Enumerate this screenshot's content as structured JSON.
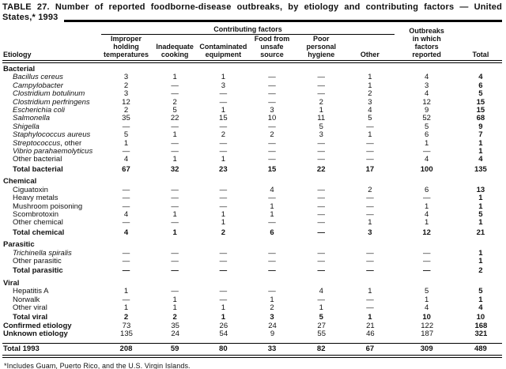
{
  "title": {
    "line1": "TABLE 27. Number of reported foodborne-disease outbreaks, by etiology and contributing factors — United",
    "line2": "States,* 1993"
  },
  "table": {
    "etiology_header": "Etiology",
    "group_header": "Contributing factors",
    "factor_columns": [
      "Improper\nholding\ntemperatures",
      "Inadequate\ncooking",
      "Contaminated\nequipment",
      "Food from\nunsafe\nsource",
      "Poor\npersonal\nhygiene",
      "Other"
    ],
    "outbreaks_header": "Outbreaks\nin which\nfactors\nreported",
    "total_header": "Total",
    "sections": [
      {
        "name": "Bacterial",
        "rows": [
          {
            "label": "Bacillus cereus",
            "italic": true,
            "values": [
              "3",
              "1",
              "1",
              "—",
              "—",
              "1",
              "4",
              "4"
            ]
          },
          {
            "label": "Campylobacter",
            "italic": true,
            "values": [
              "2",
              "—",
              "3",
              "—",
              "—",
              "1",
              "3",
              "6"
            ]
          },
          {
            "label": "Clostridium botulinum",
            "italic": true,
            "values": [
              "3",
              "—",
              "—",
              "—",
              "—",
              "2",
              "4",
              "5"
            ]
          },
          {
            "label": "Clostridium perfringens",
            "italic": true,
            "values": [
              "12",
              "2",
              "—",
              "—",
              "2",
              "3",
              "12",
              "15"
            ]
          },
          {
            "label": "Escherichia coli",
            "italic": true,
            "values": [
              "2",
              "5",
              "1",
              "3",
              "1",
              "4",
              "9",
              "15"
            ]
          },
          {
            "label": "Salmonella",
            "italic": true,
            "values": [
              "35",
              "22",
              "15",
              "10",
              "11",
              "5",
              "52",
              "68"
            ]
          },
          {
            "label": "Shigella",
            "italic": true,
            "values": [
              "—",
              "—",
              "—",
              "—",
              "5",
              "—",
              "5",
              "9"
            ]
          },
          {
            "label": "Staphylococcus aureus",
            "italic": true,
            "values": [
              "5",
              "1",
              "2",
              "2",
              "3",
              "1",
              "6",
              "7"
            ]
          },
          {
            "label": "Streptococcus",
            "suffix": ", other",
            "italic": true,
            "values": [
              "1",
              "—",
              "—",
              "—",
              "—",
              "—",
              "1",
              "1"
            ]
          },
          {
            "label": "Vibrio parahaemolyticus",
            "italic": true,
            "values": [
              "—",
              "—",
              "—",
              "—",
              "—",
              "—",
              "—",
              "1"
            ]
          },
          {
            "label": "Other bacterial",
            "values": [
              "4",
              "1",
              "1",
              "—",
              "—",
              "—",
              "4",
              "4"
            ]
          },
          {
            "label": "Total bacterial",
            "total": true,
            "values": [
              "67",
              "32",
              "23",
              "15",
              "22",
              "17",
              "100",
              "135"
            ]
          }
        ]
      },
      {
        "name": "Chemical",
        "rows": [
          {
            "label": "Ciguatoxin",
            "values": [
              "—",
              "—",
              "—",
              "4",
              "—",
              "2",
              "6",
              "13"
            ]
          },
          {
            "label": "Heavy metals",
            "values": [
              "—",
              "—",
              "—",
              "—",
              "—",
              "—",
              "—",
              "1"
            ]
          },
          {
            "label": "Mushroom poisoning",
            "values": [
              "—",
              "—",
              "—",
              "1",
              "—",
              "—",
              "1",
              "1"
            ]
          },
          {
            "label": "Scombrotoxin",
            "values": [
              "4",
              "1",
              "1",
              "1",
              "—",
              "—",
              "4",
              "5"
            ]
          },
          {
            "label": "Other chemical",
            "values": [
              "—",
              "—",
              "1",
              "—",
              "—",
              "1",
              "1",
              "1"
            ]
          },
          {
            "label": "Total chemical",
            "total": true,
            "values": [
              "4",
              "1",
              "2",
              "6",
              "—",
              "3",
              "12",
              "21"
            ]
          }
        ]
      },
      {
        "name": "Parasitic",
        "rows": [
          {
            "label": "Trichinella spiralis",
            "italic": true,
            "values": [
              "—",
              "—",
              "—",
              "—",
              "—",
              "—",
              "—",
              "1"
            ]
          },
          {
            "label": "Other parasitic",
            "values": [
              "—",
              "—",
              "—",
              "—",
              "—",
              "—",
              "—",
              "1"
            ]
          },
          {
            "label": "Total parasitic",
            "total": true,
            "values": [
              "—",
              "—",
              "—",
              "—",
              "—",
              "—",
              "—",
              "2"
            ]
          }
        ]
      },
      {
        "name": "Viral",
        "rows": [
          {
            "label": "Hepatitis A",
            "values": [
              "1",
              "—",
              "—",
              "—",
              "4",
              "1",
              "5",
              "5"
            ]
          },
          {
            "label": "Norwalk",
            "values": [
              "—",
              "1",
              "—",
              "1",
              "—",
              "—",
              "1",
              "1"
            ]
          },
          {
            "label": "Other viral",
            "values": [
              "1",
              "1",
              "1",
              "2",
              "1",
              "—",
              "4",
              "4"
            ]
          },
          {
            "label": "Total viral",
            "total": true,
            "values": [
              "2",
              "2",
              "1",
              "3",
              "5",
              "1",
              "10",
              "10"
            ]
          }
        ]
      }
    ],
    "summary_rows": [
      {
        "label": "Confirmed etiology",
        "values": [
          "73",
          "35",
          "26",
          "24",
          "27",
          "21",
          "122",
          "168"
        ]
      },
      {
        "label": "Unknown etiology",
        "values": [
          "135",
          "24",
          "54",
          "9",
          "55",
          "46",
          "187",
          "321"
        ]
      }
    ],
    "grand_total": {
      "label": "Total 1993",
      "values": [
        "208",
        "59",
        "80",
        "33",
        "82",
        "67",
        "309",
        "489"
      ]
    }
  },
  "footnote": "*Includes Guam, Puerto Rico, and the U.S. Virgin Islands."
}
